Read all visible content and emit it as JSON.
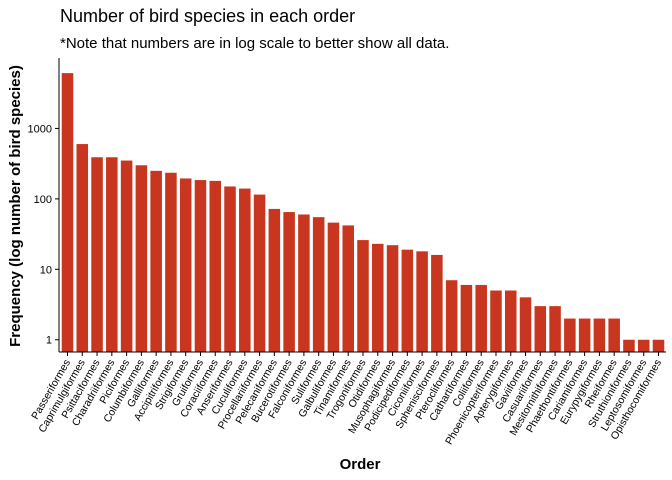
{
  "chart_data": {
    "type": "bar",
    "title": "Number of bird species in each order",
    "subtitle": "*Note that numbers are in log scale to better show all data.",
    "xlabel": "Order",
    "ylabel": "Frequency (log number of bird species)",
    "y_scale": "log10",
    "ylim": [
      0.67,
      10000
    ],
    "y_ticks": [
      1,
      10,
      100,
      1000
    ],
    "y_tick_labels": [
      "1",
      "10",
      "100",
      "1000"
    ],
    "bar_color": "#c8361f",
    "categories": [
      "Passeriformes",
      "Caprimulgiformes",
      "Psittaciformes",
      "Charadriiformes",
      "Piciformes",
      "Columbiformes",
      "Galliformes",
      "Accipitriformes",
      "Strigiformes",
      "Gruiformes",
      "Coraciiformes",
      "Anseriformes",
      "Cuculiformes",
      "Procellariiformes",
      "Pelecaniformes",
      "Bucerotiformes",
      "Falconiformes",
      "Suliformes",
      "Galbuliformes",
      "Tinamiformes",
      "Trogoniformes",
      "Otidiformes",
      "Musophagiformes",
      "Podicipediformes",
      "Ciconiiformes",
      "Sphenisciformes",
      "Pterocliformes",
      "Cathartiformes",
      "Coliiformes",
      "Phoenicopteriformes",
      "Apterygiformes",
      "Gaviiformes",
      "Casuariiformes",
      "Mesitornithiformes",
      "Phaethontiformes",
      "Cariamiformes",
      "Eurypygiformes",
      "Rheiformes",
      "Struthioniformes",
      "Leptosomiformes",
      "Opisthocomiformes"
    ],
    "values": [
      6100,
      600,
      390,
      390,
      350,
      300,
      250,
      235,
      195,
      185,
      180,
      150,
      140,
      115,
      72,
      65,
      60,
      55,
      46,
      42,
      26,
      23,
      22,
      19,
      18,
      16,
      7,
      6,
      6,
      5,
      5,
      4,
      3,
      3,
      2,
      2,
      2,
      2,
      1,
      1,
      1
    ]
  }
}
